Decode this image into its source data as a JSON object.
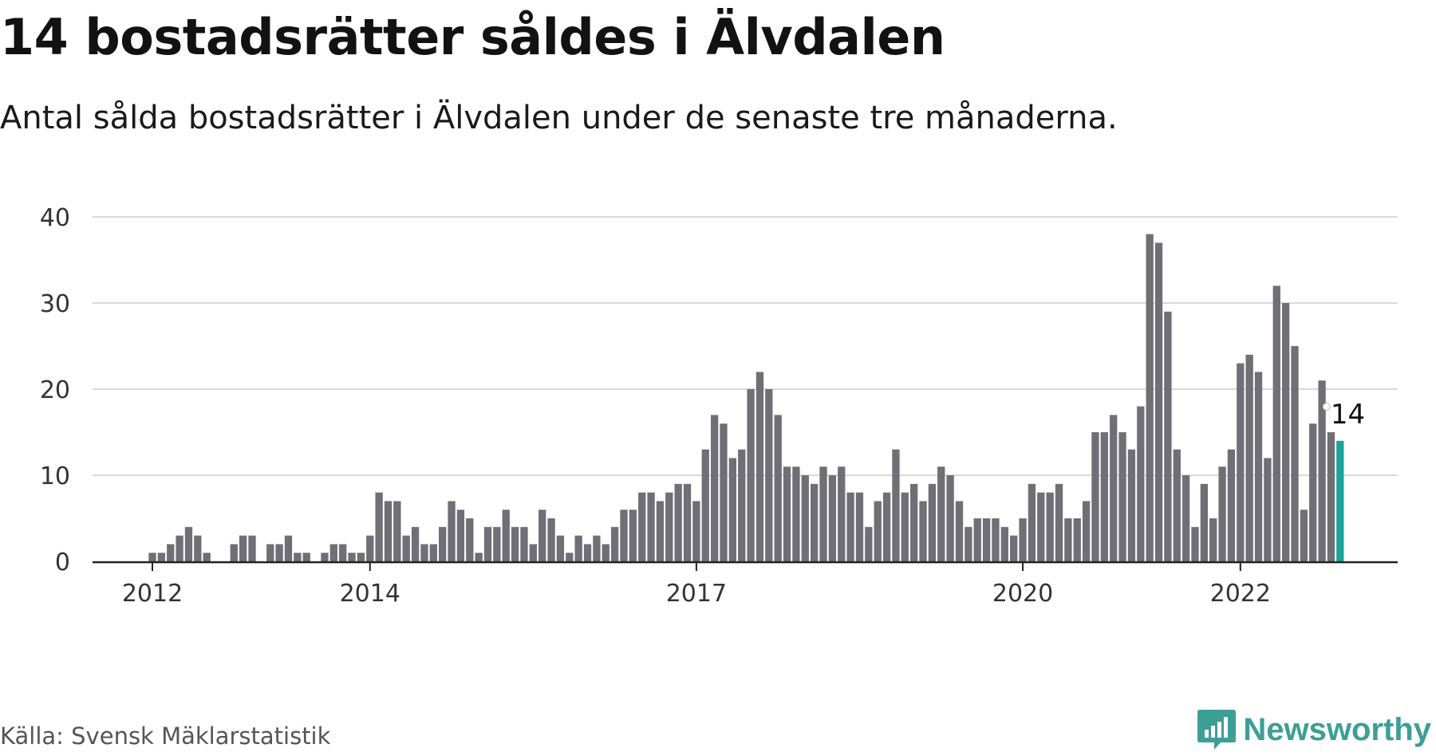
{
  "header": {
    "title": "14 bostadsrätter såldes i Älvdalen",
    "subtitle": "Antal sålda bostadsrätter i Älvdalen under de senaste tre månaderna."
  },
  "footer": {
    "source": "Källa: Svensk Mäklarstatistik",
    "logo_text": "Newsworthy"
  },
  "colors": {
    "bar": "#6f6f75",
    "highlight": "#1aa39a",
    "grid": "#d9d9d9",
    "axis": "#222222",
    "logo": "#3d9e96"
  },
  "chart_data": {
    "type": "bar",
    "title": "14 bostadsrätter såldes i Älvdalen",
    "xlabel": "",
    "ylabel": "",
    "ylim": [
      0,
      40
    ],
    "yticks": [
      0,
      10,
      20,
      30,
      40
    ],
    "xtick_labels": [
      {
        "label": "2012",
        "index": 0
      },
      {
        "label": "2014",
        "index": 24
      },
      {
        "label": "2017",
        "index": 60
      },
      {
        "label": "2020",
        "index": 96
      },
      {
        "label": "2022",
        "index": 120
      }
    ],
    "start_month": "2012-01",
    "values": [
      1,
      1,
      2,
      3,
      4,
      3,
      1,
      0,
      0,
      2,
      3,
      3,
      0,
      2,
      2,
      3,
      1,
      1,
      0,
      1,
      2,
      2,
      1,
      1,
      3,
      8,
      7,
      7,
      3,
      4,
      2,
      2,
      4,
      7,
      6,
      5,
      1,
      4,
      4,
      6,
      4,
      4,
      2,
      6,
      5,
      3,
      1,
      3,
      2,
      3,
      2,
      4,
      6,
      6,
      8,
      8,
      7,
      8,
      9,
      9,
      7,
      13,
      17,
      16,
      12,
      13,
      20,
      22,
      20,
      17,
      11,
      11,
      10,
      9,
      11,
      10,
      11,
      8,
      8,
      4,
      7,
      8,
      13,
      8,
      9,
      7,
      9,
      11,
      10,
      7,
      4,
      5,
      5,
      5,
      4,
      3,
      5,
      9,
      8,
      8,
      9,
      5,
      5,
      7,
      15,
      15,
      17,
      15,
      13,
      18,
      38,
      37,
      29,
      13,
      10,
      4,
      9,
      5,
      11,
      13,
      23,
      24,
      22,
      12,
      32,
      30,
      25,
      6,
      16,
      21,
      15,
      14
    ],
    "highlight_index": 131,
    "highlight_label": "14",
    "grid": true
  }
}
